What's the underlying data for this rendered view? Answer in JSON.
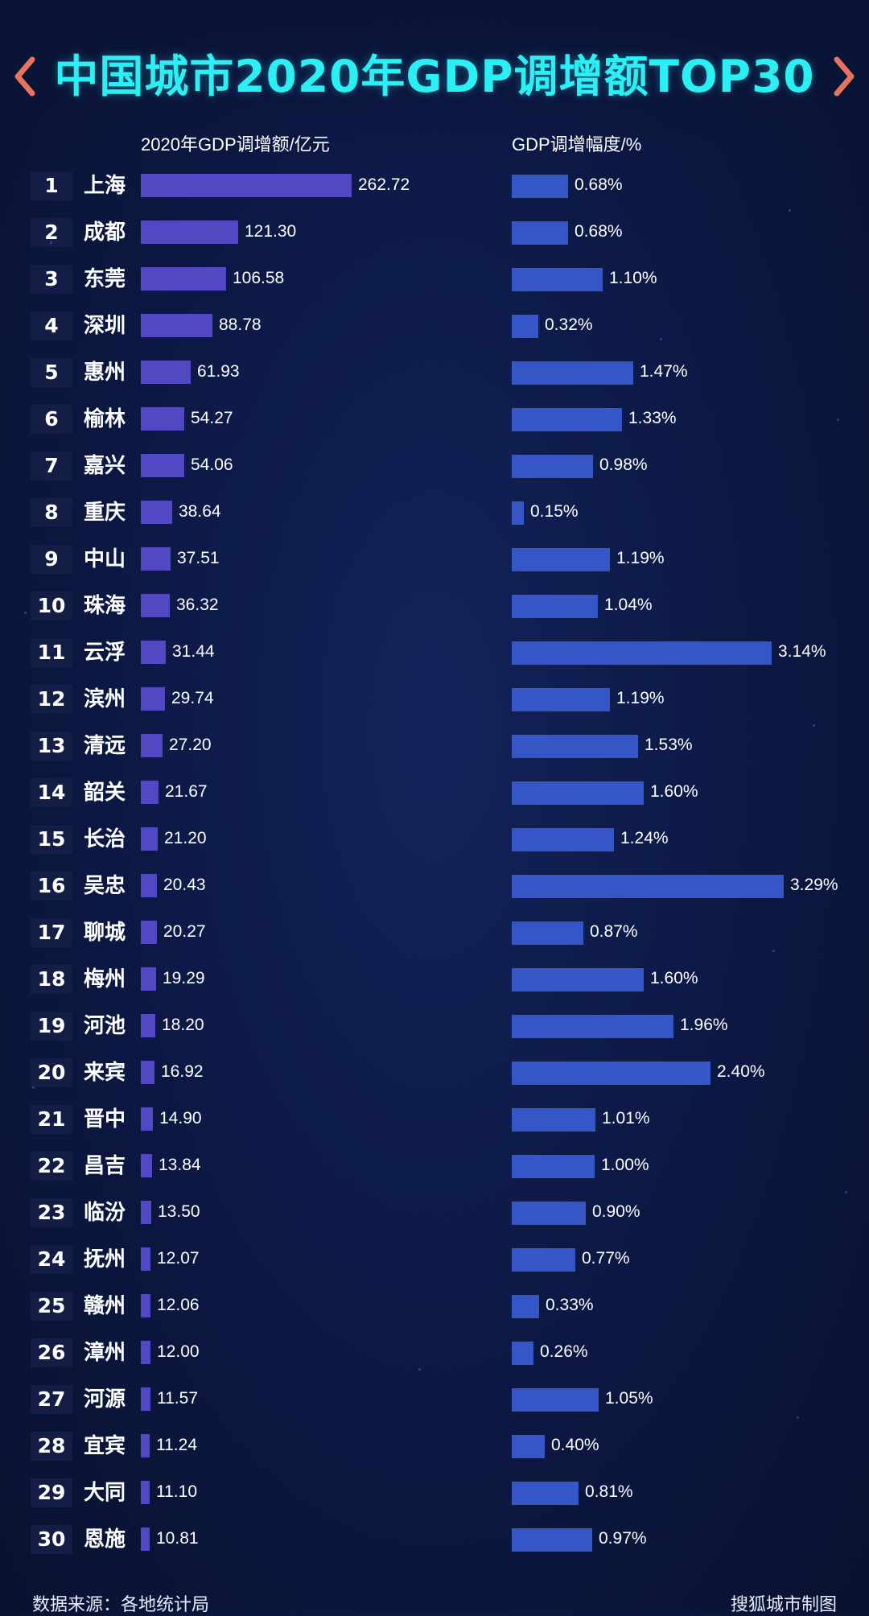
{
  "title": "中国城市2020年GDP调增额TOP30",
  "headers": {
    "left": "2020年GDP调增额/亿元",
    "right": "GDP调增幅度/%"
  },
  "footer": {
    "source": "数据来源：各地统计局",
    "credit": "搜狐城市制图"
  },
  "colors": {
    "title": "#2af0f6",
    "left_bar": "#5248c4",
    "right_bar": "#3656c8",
    "background": "#0c1843",
    "chevron": "#e8735c"
  },
  "chart_data": {
    "type": "bar",
    "categories": [
      "上海",
      "成都",
      "东莞",
      "深圳",
      "惠州",
      "榆林",
      "嘉兴",
      "重庆",
      "中山",
      "珠海",
      "云浮",
      "滨州",
      "清远",
      "韶关",
      "长治",
      "吴忠",
      "聊城",
      "梅州",
      "河池",
      "来宾",
      "晋中",
      "昌吉",
      "临汾",
      "抚州",
      "赣州",
      "漳州",
      "河源",
      "宜宾",
      "大同",
      "恩施"
    ],
    "ranks": [
      "1",
      "2",
      "3",
      "4",
      "5",
      "6",
      "7",
      "8",
      "9",
      "10",
      "11",
      "12",
      "13",
      "14",
      "15",
      "16",
      "17",
      "18",
      "19",
      "20",
      "21",
      "22",
      "23",
      "24",
      "25",
      "26",
      "27",
      "28",
      "29",
      "30"
    ],
    "series": [
      {
        "name": "2020年GDP调增额/亿元",
        "values": [
          262.72,
          121.3,
          106.58,
          88.78,
          61.93,
          54.27,
          54.06,
          38.64,
          37.51,
          36.32,
          31.44,
          29.74,
          27.2,
          21.67,
          21.2,
          20.43,
          20.27,
          19.29,
          18.2,
          16.92,
          14.9,
          13.84,
          13.5,
          12.07,
          12.06,
          12.0,
          11.57,
          11.24,
          11.1,
          10.81
        ],
        "labels": [
          "262.72",
          "121.30",
          "106.58",
          "88.78",
          "61.93",
          "54.27",
          "54.06",
          "38.64",
          "37.51",
          "36.32",
          "31.44",
          "29.74",
          "27.20",
          "21.67",
          "21.20",
          "20.43",
          "20.27",
          "19.29",
          "18.20",
          "16.92",
          "14.90",
          "13.84",
          "13.50",
          "12.07",
          "12.06",
          "12.00",
          "11.57",
          "11.24",
          "11.10",
          "10.81"
        ]
      },
      {
        "name": "GDP调增幅度/%",
        "values": [
          0.68,
          0.68,
          1.1,
          0.32,
          1.47,
          1.33,
          0.98,
          0.15,
          1.19,
          1.04,
          3.14,
          1.19,
          1.53,
          1.6,
          1.24,
          3.29,
          0.87,
          1.6,
          1.96,
          2.4,
          1.01,
          1.0,
          0.9,
          0.77,
          0.33,
          0.26,
          1.05,
          0.4,
          0.81,
          0.97
        ],
        "labels": [
          "0.68%",
          "0.68%",
          "1.10%",
          "0.32%",
          "1.47%",
          "1.33%",
          "0.98%",
          "0.15%",
          "1.19%",
          "1.04%",
          "3.14%",
          "1.19%",
          "1.53%",
          "1.60%",
          "1.24%",
          "3.29%",
          "0.87%",
          "1.60%",
          "1.96%",
          "2.40%",
          "1.01%",
          "1.00%",
          "0.90%",
          "0.77%",
          "0.33%",
          "0.26%",
          "1.05%",
          "0.40%",
          "0.81%",
          "0.97%"
        ]
      }
    ]
  }
}
